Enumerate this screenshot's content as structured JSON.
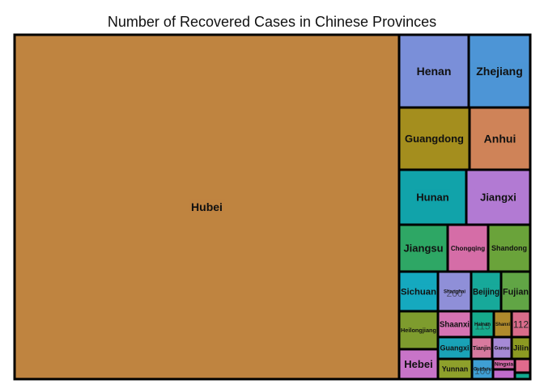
{
  "chart_data": {
    "type": "treemap",
    "title": "Number of Recovered Cases in Chinese Provinces",
    "tiles": [
      {
        "name": "Hubei",
        "color": "#bf8440",
        "show_label": true
      },
      {
        "name": "Henan",
        "color": "#7a8fd9",
        "show_label": true
      },
      {
        "name": "Zhejiang",
        "color": "#4d95d6",
        "show_label": true
      },
      {
        "name": "Guangdong",
        "color": "#a48e1e",
        "show_label": true
      },
      {
        "name": "Anhui",
        "color": "#cf8358",
        "show_label": true
      },
      {
        "name": "Hunan",
        "color": "#11a3aa",
        "show_label": true
      },
      {
        "name": "Jiangxi",
        "color": "#b27ad3",
        "show_label": true
      },
      {
        "name": "Jiangsu",
        "color": "#2ea765",
        "show_label": true
      },
      {
        "name": "Chongqing",
        "color": "#d56da7",
        "show_label": true
      },
      {
        "name": "Shandong",
        "color": "#6aa33a",
        "show_label": true
      },
      {
        "name": "Sichuan",
        "color": "#15a9bf",
        "show_label": true
      },
      {
        "name": "Shanghai",
        "color": "#8f8fd8",
        "show_label": true,
        "value_text": "260"
      },
      {
        "name": "Beijing",
        "color": "#17a99a",
        "show_label": true
      },
      {
        "name": "Fujian",
        "color": "#61a545",
        "show_label": true
      },
      {
        "name": "Heilongjiang",
        "color": "#7e9c2e",
        "show_label": true
      },
      {
        "name": "Shaanxi",
        "color": "#d673b3",
        "show_label": true
      },
      {
        "name": "Hainan",
        "color": "#16aa8c",
        "show_label": true,
        "value_text": "115"
      },
      {
        "name": "Shanxi",
        "color": "#b08a2c",
        "show_label": true
      },
      {
        "name": "",
        "color": "#d96c8a",
        "show_label": false,
        "value_text": "112"
      },
      {
        "name": "Hebei",
        "color": "#c874c8",
        "show_label": true
      },
      {
        "name": "Guangxi",
        "color": "#1aa3b7",
        "show_label": true
      },
      {
        "name": "Tianjin",
        "color": "#d87a9e",
        "show_label": true
      },
      {
        "name": "Gansu",
        "color": "#a68ad6",
        "show_label": true
      },
      {
        "name": "Jilin",
        "color": "#8c9a22",
        "show_label": true
      },
      {
        "name": "Yunnan",
        "color": "#8ea12b",
        "show_label": true
      },
      {
        "name": "Guizhou",
        "color": "#3f9fd4",
        "show_label": true,
        "value_text": "100"
      },
      {
        "name": "Ningxia",
        "color": "#d067a6",
        "show_label": true
      },
      {
        "name": "",
        "color": "#c06ccc",
        "show_label": false
      },
      {
        "name": "",
        "color": "#e06a8c",
        "show_label": false
      },
      {
        "name": "",
        "color": "#12a98e",
        "show_label": false
      }
    ]
  }
}
